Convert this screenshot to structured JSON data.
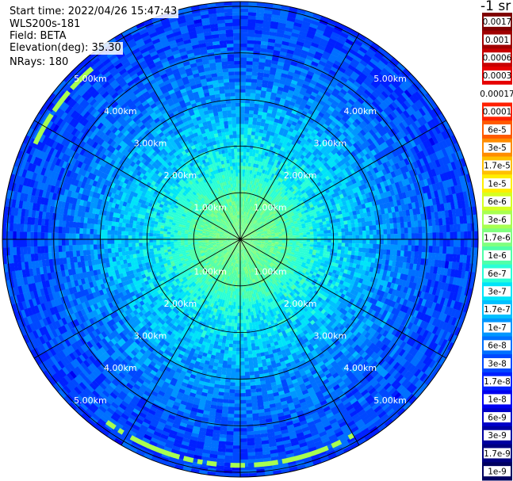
{
  "info": {
    "start_time": "Start time: 2022/04/26 15:47:43",
    "instrument": "WLS200s-181",
    "field": "Field: BETA",
    "elevation": "Elevation(deg): 35.30",
    "nrays": "NRays: 180"
  },
  "colorbar": {
    "title": "-1 sr",
    "labels": [
      "0.0017",
      "0.001",
      "0.0006",
      "0.0003",
      "0.00017",
      "0.0001",
      "6e-5",
      "3e-5",
      "1.7e-5",
      "1e-5",
      "6e-6",
      "3e-6",
      "1.7e-6",
      "1e-6",
      "6e-7",
      "3e-7",
      "1.7e-7",
      "1e-7",
      "6e-8",
      "3e-8",
      "1.7e-8",
      "1e-8",
      "6e-9",
      "3e-9",
      "1.7e-9",
      "1e-9"
    ],
    "colors": [
      "#7f0000",
      "#a00000",
      "#c80000",
      "#e60000",
      "#ffffff",
      "#ff2000",
      "#ff5a00",
      "#ff8c00",
      "#ffc000",
      "#ffee00",
      "#d6ff22",
      "#a8ff50",
      "#7fff7f",
      "#50ffa8",
      "#2affd6",
      "#00e4f8",
      "#00c0ff",
      "#0096ff",
      "#0070ff",
      "#0048ff",
      "#0020ff",
      "#0000f0",
      "#0000c8",
      "#0000a0",
      "#000080",
      "#000060"
    ]
  },
  "chart_data": {
    "type": "heatmap",
    "projection": "polar (PPI scan)",
    "field": "BETA",
    "elevation_deg": 35.3,
    "n_rays": 180,
    "range_ring_labels": [
      "1.00km",
      "2.00km",
      "3.00km",
      "4.00km",
      "5.00km"
    ],
    "range_rings_km": [
      1,
      2,
      3,
      4,
      5
    ],
    "max_range_km": 5.1,
    "azimuth_spokes_deg": [
      0,
      30,
      60,
      90,
      120,
      150,
      180,
      210,
      240,
      270,
      300,
      330
    ],
    "value_profile": [
      {
        "range_km": 0.0,
        "beta": "1.7e-6"
      },
      {
        "range_km": 1.0,
        "beta": "1e-6"
      },
      {
        "range_km": 1.8,
        "beta": "3e-7"
      },
      {
        "range_km": 2.5,
        "beta": "1.7e-7"
      },
      {
        "range_km": 3.5,
        "beta": "6e-8"
      },
      {
        "range_km": 4.5,
        "beta": "3e-8"
      }
    ],
    "high_return_arcs": [
      {
        "range_km": 4.85,
        "azimuth_deg": [
          150,
          215
        ],
        "beta": "3e-6"
      },
      {
        "range_km": 4.85,
        "azimuth_deg": [
          295,
          320
        ],
        "beta": "3e-6"
      }
    ]
  }
}
